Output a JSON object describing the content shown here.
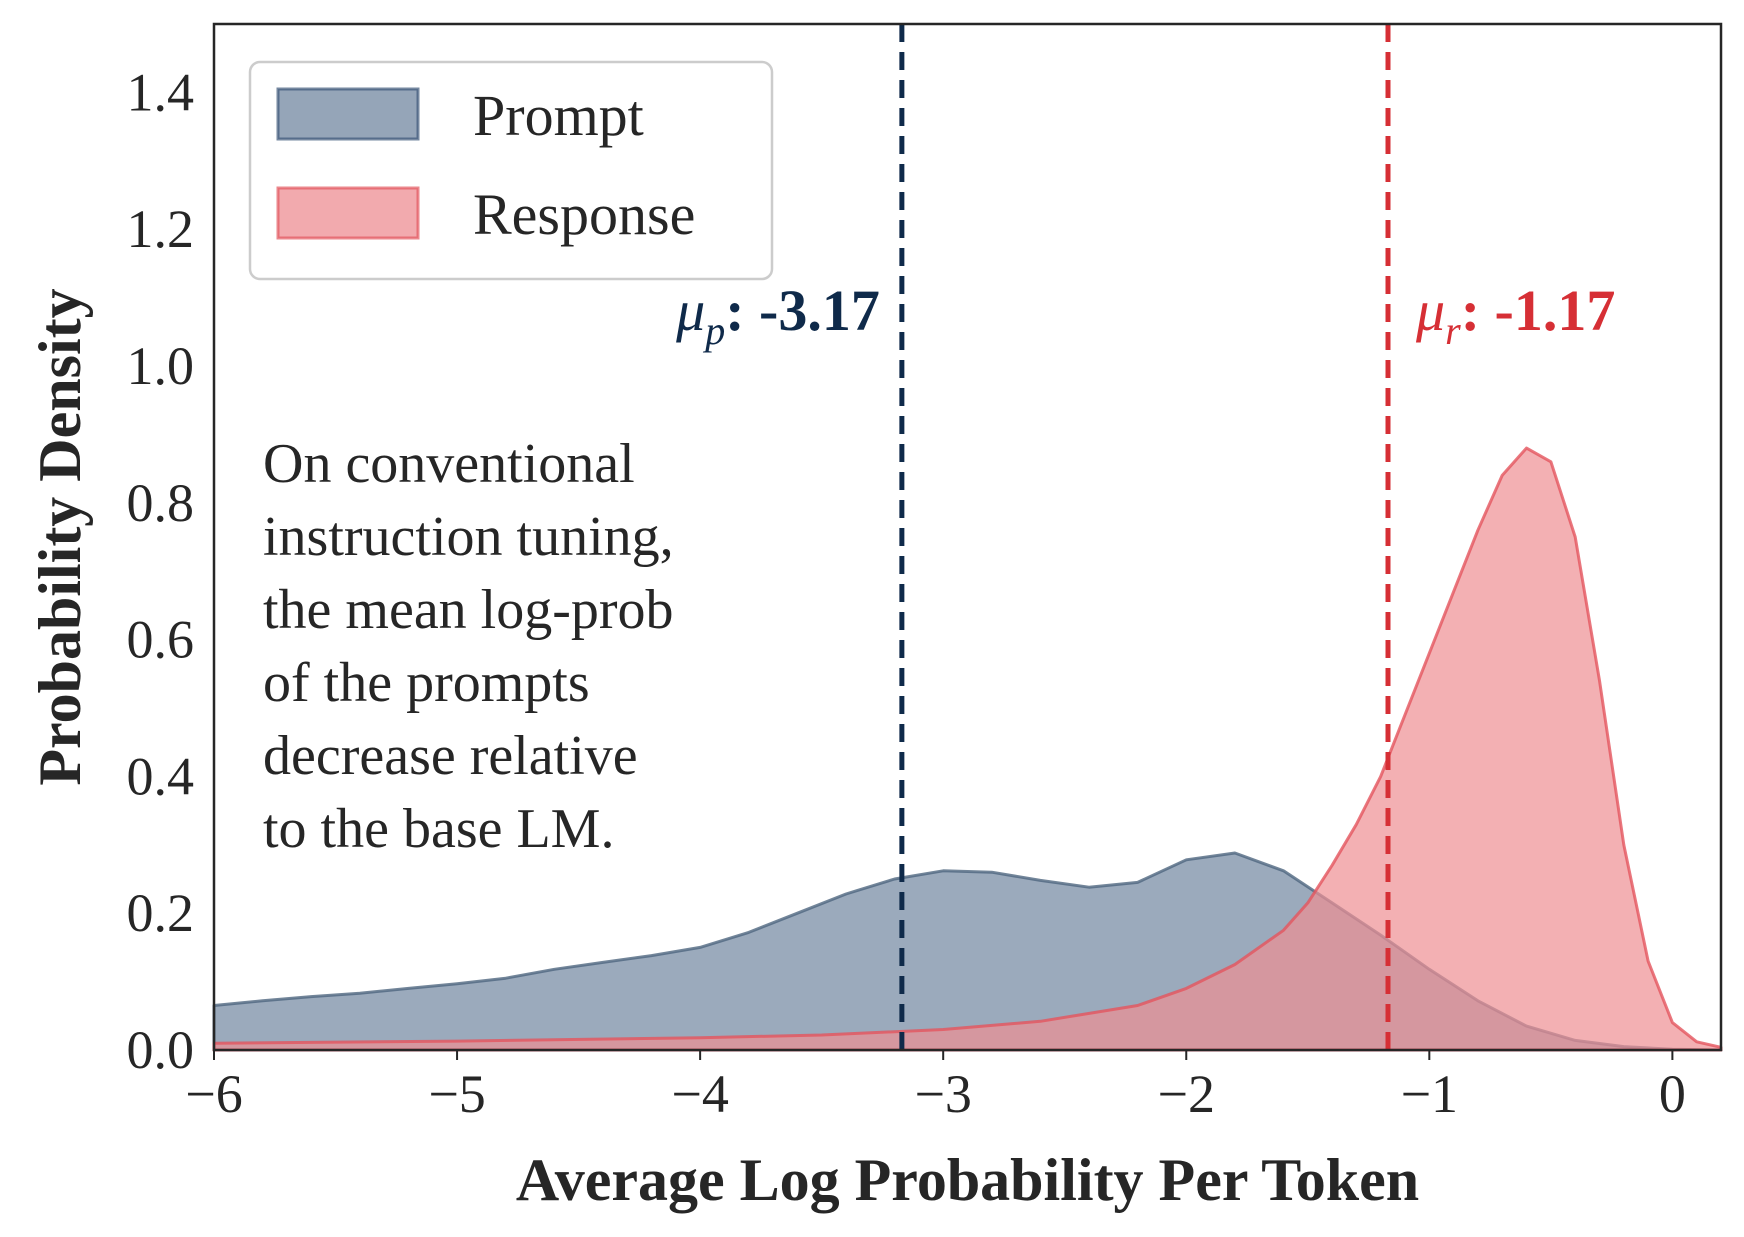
{
  "chart_data": {
    "type": "area",
    "title": "",
    "xlabel": "Average Log Probability Per Token",
    "ylabel": "Probability Density",
    "xlim": [
      -6,
      0.2
    ],
    "ylim": [
      0,
      1.5
    ],
    "xticks": [
      -6,
      -5,
      -4,
      -3,
      -2,
      -1,
      0
    ],
    "xtick_labels": [
      "−6",
      "−5",
      "−4",
      "−3",
      "−2",
      "−1",
      "0"
    ],
    "yticks": [
      0.0,
      0.2,
      0.4,
      0.6,
      0.8,
      1.0,
      1.2,
      1.4
    ],
    "ytick_labels": [
      "0.0",
      "0.2",
      "0.4",
      "0.6",
      "0.8",
      "1.0",
      "1.2",
      "1.4"
    ],
    "grid": false,
    "legend": {
      "position": "top-left",
      "entries": [
        {
          "label": "Prompt",
          "color": "#3c5677"
        },
        {
          "label": "Response",
          "color": "#e3555e"
        }
      ]
    },
    "series": [
      {
        "name": "Prompt",
        "fill_color": "#8a9bb0",
        "line_color": "#4f6680",
        "x": [
          -6.0,
          -5.8,
          -5.6,
          -5.4,
          -5.2,
          -5.0,
          -4.8,
          -4.6,
          -4.4,
          -4.2,
          -4.0,
          -3.8,
          -3.6,
          -3.4,
          -3.2,
          -3.0,
          -2.8,
          -2.6,
          -2.4,
          -2.2,
          -2.0,
          -1.8,
          -1.6,
          -1.4,
          -1.2,
          -1.0,
          -0.8,
          -0.6,
          -0.4,
          -0.2,
          0.0,
          0.2
        ],
        "y": [
          0.065,
          0.072,
          0.078,
          0.083,
          0.09,
          0.097,
          0.105,
          0.118,
          0.128,
          0.138,
          0.15,
          0.172,
          0.2,
          0.228,
          0.25,
          0.262,
          0.26,
          0.248,
          0.238,
          0.245,
          0.278,
          0.288,
          0.262,
          0.215,
          0.168,
          0.118,
          0.072,
          0.035,
          0.014,
          0.005,
          0.001,
          0.0
        ]
      },
      {
        "name": "Response",
        "fill_color": "#ee8e93",
        "line_color": "#e3555e",
        "x": [
          -6.0,
          -5.0,
          -4.0,
          -3.5,
          -3.0,
          -2.6,
          -2.2,
          -2.0,
          -1.8,
          -1.6,
          -1.5,
          -1.4,
          -1.3,
          -1.2,
          -1.1,
          -1.0,
          -0.9,
          -0.8,
          -0.7,
          -0.6,
          -0.5,
          -0.4,
          -0.3,
          -0.2,
          -0.1,
          0.0,
          0.1,
          0.2
        ],
        "y": [
          0.01,
          0.013,
          0.018,
          0.022,
          0.03,
          0.042,
          0.065,
          0.09,
          0.125,
          0.175,
          0.215,
          0.27,
          0.33,
          0.4,
          0.49,
          0.58,
          0.67,
          0.76,
          0.84,
          0.88,
          0.86,
          0.75,
          0.54,
          0.3,
          0.13,
          0.04,
          0.012,
          0.004
        ]
      }
    ],
    "mean_lines": [
      {
        "name": "Prompt mean",
        "x": -3.17,
        "color": "#0f2a4a",
        "symbol": "μ",
        "subscript": "p",
        "label": ": -3.17"
      },
      {
        "name": "Response mean",
        "x": -1.17,
        "color": "#d62f35",
        "symbol": "μ",
        "subscript": "r",
        "label": ": -1.17"
      }
    ],
    "annotation": {
      "lines": [
        "On conventional",
        "instruction tuning,",
        "the mean log-prob",
        "of the prompts",
        "decrease relative",
        "to the base LM."
      ]
    }
  }
}
